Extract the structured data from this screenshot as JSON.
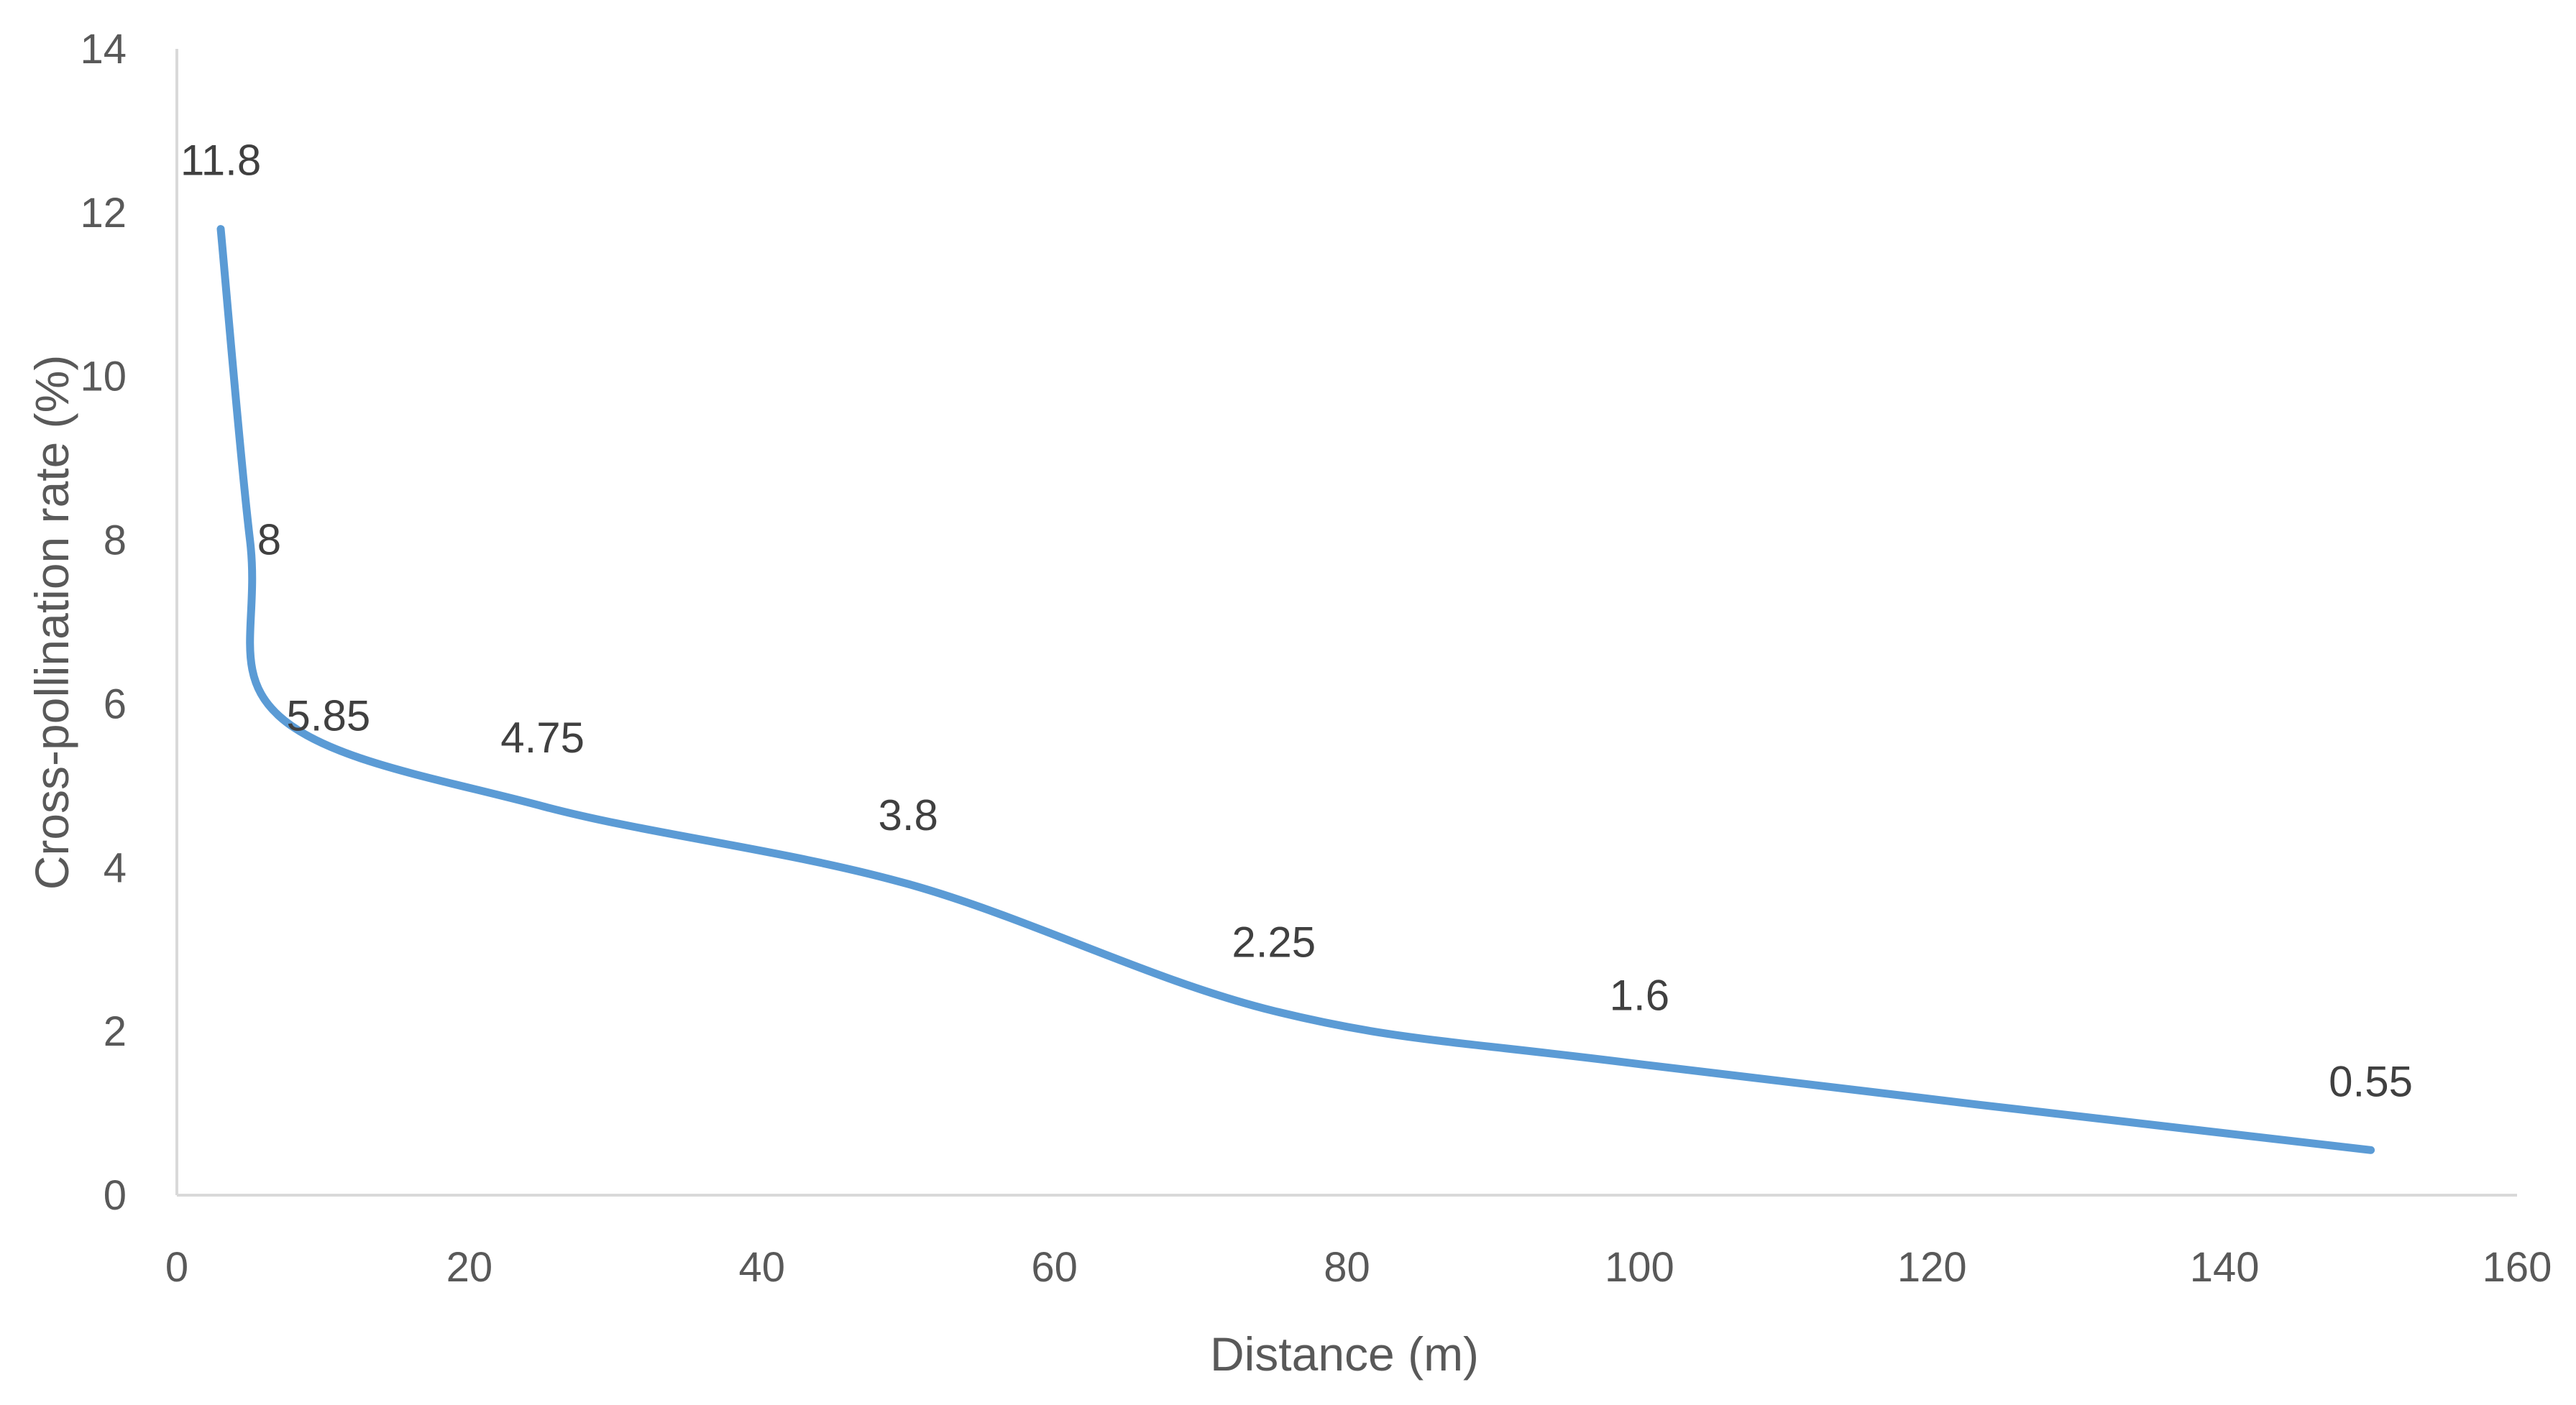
{
  "chart_data": {
    "type": "line",
    "smooth": true,
    "xlabel": "Distance (m)",
    "ylabel": "Cross-pollination rate (%)",
    "xlim": [
      0,
      160
    ],
    "ylim": [
      0,
      14
    ],
    "x_ticks": [
      0,
      20,
      40,
      60,
      80,
      100,
      120,
      140,
      160
    ],
    "y_ticks": [
      0,
      2,
      4,
      6,
      8,
      10,
      12,
      14
    ],
    "grid": false,
    "legend": "none",
    "series": [
      {
        "color": "#5b9bd5",
        "x": [
          3,
          5,
          7,
          25,
          50,
          75,
          100,
          150
        ],
        "y": [
          11.8,
          8,
          5.85,
          4.75,
          3.8,
          2.25,
          1.6,
          0.55
        ],
        "labels": [
          "11.8",
          "8",
          "5.85",
          "4.75",
          "3.8",
          "2.25",
          "1.6",
          "0.55"
        ]
      }
    ]
  }
}
